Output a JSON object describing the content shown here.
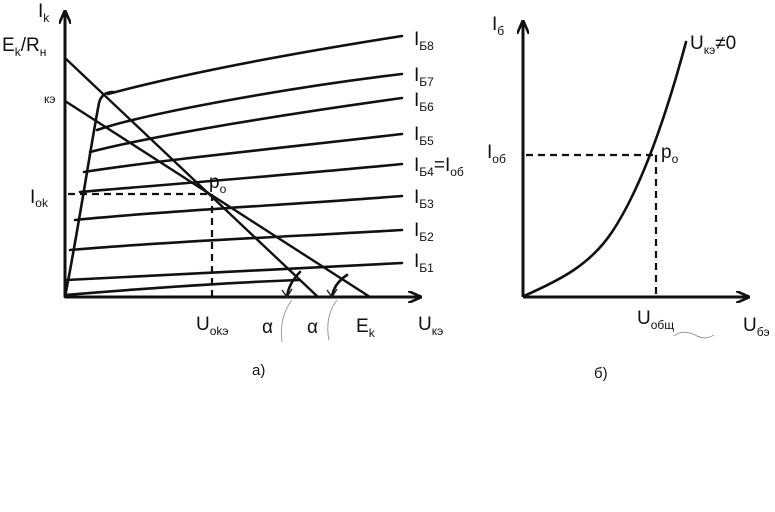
{
  "diagram_a": {
    "y_axis": {
      "main": "I",
      "sub": "k"
    },
    "x_axis": {
      "main": "U",
      "sub": "кэ"
    },
    "ek_rn": {
      "a": "E",
      "a_sub": "k",
      "b": "/R",
      "b_sub": "н"
    },
    "kz_label": "кэ",
    "iok_label": {
      "main": "I",
      "sub": "ok"
    },
    "uoke_label": {
      "main": "U",
      "sub": "okэ"
    },
    "ek_label": {
      "main": "E",
      "sub": "k"
    },
    "po_label": {
      "main": "p",
      "sub": "o"
    },
    "alpha_1": "α",
    "alpha_2": "α",
    "curve_labels": [
      {
        "main": "I",
        "sub": "Б8"
      },
      {
        "main": "I",
        "sub": "Б7"
      },
      {
        "main": "I",
        "sub": "Б6"
      },
      {
        "main": "I",
        "sub": "Б5"
      },
      {
        "main": "I",
        "sub": "Б4",
        "extra": "=I",
        "extra_sub": "об"
      },
      {
        "main": "I",
        "sub": "Б3"
      },
      {
        "main": "I",
        "sub": "Б2"
      },
      {
        "main": "I",
        "sub": "Б1"
      }
    ],
    "caption": "а)"
  },
  "diagram_b": {
    "y_axis": {
      "main": "I",
      "sub": "б"
    },
    "x_axis": {
      "main": "U",
      "sub": "бэ"
    },
    "curve_label": {
      "main": "U",
      "sub": "кэ",
      "rest": "≠0"
    },
    "iob_label": {
      "main": "I",
      "sub": "об"
    },
    "po_label": {
      "main": "p",
      "sub": "o"
    },
    "uob_label": {
      "main": "U",
      "sub": "общ"
    },
    "caption": "б)"
  }
}
